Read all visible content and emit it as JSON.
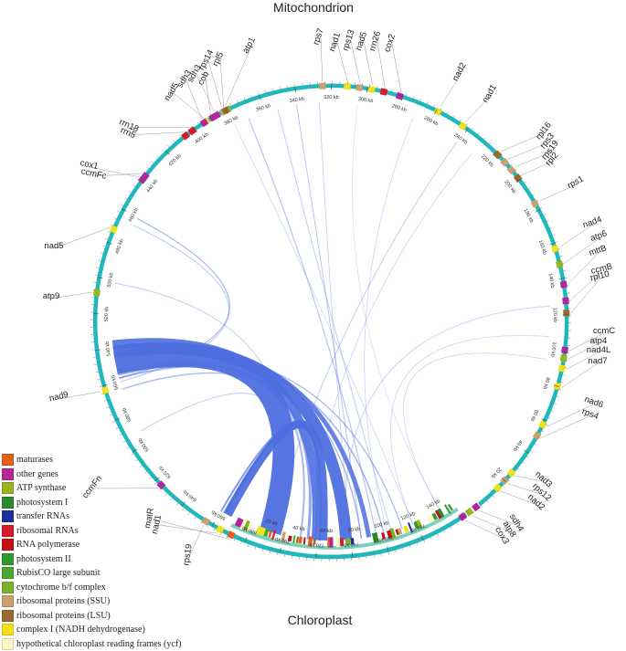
{
  "titles": {
    "mito": "Mitochondrion",
    "cp": "Chloroplast"
  },
  "colors": {
    "ring": "#20b8bc",
    "link": "#4f6fe0",
    "cp_track": "#7cd0c0"
  },
  "legend": [
    {
      "label": "maturases",
      "color": "#e0601c"
    },
    {
      "label": "other genes",
      "color": "#b0279c"
    },
    {
      "label": "ATP synthase",
      "color": "#9ab41e"
    },
    {
      "label": "photosystem I",
      "color": "#2a8a2a"
    },
    {
      "label": "transfer RNAs",
      "color": "#1f2f9a"
    },
    {
      "label": "ribosomal RNAs",
      "color": "#d81a2a"
    },
    {
      "label": "RNA polymerase",
      "color": "#c41212"
    },
    {
      "label": "photosystem II",
      "color": "#2e9a2e"
    },
    {
      "label": "RubisCO large subunit",
      "color": "#48a830"
    },
    {
      "label": "cytochrome b/f complex",
      "color": "#7ab12a"
    },
    {
      "label": "ribosomal proteins (SSU)",
      "color": "#caa070"
    },
    {
      "label": "ribosomal proteins (LSU)",
      "color": "#9a6a32"
    },
    {
      "label": "complex I (NADH dehydrogenase)",
      "color": "#f2e01a"
    },
    {
      "label": "hypothetical chloroplast reading frames (ycf)",
      "color": "#fff6c8"
    }
  ],
  "mito_ticks": [
    "20 kb",
    "40 kb",
    "60 kb",
    "80 kb",
    "100 kb",
    "120 kb",
    "140 kb",
    "160 kb",
    "180 kb",
    "200 kb",
    "220 kb",
    "240 kb",
    "260 kb",
    "280 kb",
    "300 kb",
    "320 kb",
    "340 kb",
    "360 kb",
    "380 kb",
    "400 kb",
    "420 kb",
    "440 kb",
    "460 kb",
    "480 kb",
    "500 kb",
    "520 kb",
    "540 kb",
    "560 kb",
    "580 kb",
    "600 kb",
    "620 kb",
    "640 kb",
    "660 kb",
    "680 kb",
    "700 kb",
    "720 kb",
    "740 kb",
    "760 kb",
    "780 kb"
  ],
  "cp_ticks": [
    "20 kb",
    "40 kb",
    "60 kb",
    "80 kb",
    "100 kb",
    "120 kb",
    "140 kb"
  ],
  "genes": [
    {
      "name": "atp1",
      "color": "#9ab41e"
    },
    {
      "name": "rps7",
      "color": "#caa070"
    },
    {
      "name": "nad1",
      "color": "#f2e01a"
    },
    {
      "name": "rps13",
      "color": "#caa070"
    },
    {
      "name": "nad5",
      "color": "#f2e01a"
    },
    {
      "name": "rrn26",
      "color": "#d81a2a"
    },
    {
      "name": "cox2",
      "color": "#b0279c"
    },
    {
      "name": "nad2",
      "color": "#f2e01a"
    },
    {
      "name": "nad1",
      "color": "#f2e01a"
    },
    {
      "name": "rpl16",
      "color": "#9a6a32"
    },
    {
      "name": "rps3",
      "color": "#caa070"
    },
    {
      "name": "rps19",
      "color": "#caa070"
    },
    {
      "name": "rpl2",
      "color": "#9a6a32"
    },
    {
      "name": "rps1",
      "color": "#caa070"
    },
    {
      "name": "nad4",
      "color": "#f2e01a"
    },
    {
      "name": "atp6",
      "color": "#9ab41e"
    },
    {
      "name": "mttB",
      "color": "#b0279c"
    },
    {
      "name": "ccmB",
      "color": "#b0279c"
    },
    {
      "name": "rpl10",
      "color": "#9a6a32"
    },
    {
      "name": "ccmC",
      "color": "#b0279c"
    },
    {
      "name": "atp4",
      "color": "#9ab41e"
    },
    {
      "name": "nad4L",
      "color": "#f2e01a"
    },
    {
      "name": "nad7",
      "color": "#f2e01a"
    },
    {
      "name": "nad6",
      "color": "#f2e01a"
    },
    {
      "name": "rps4",
      "color": "#caa070"
    },
    {
      "name": "nad3",
      "color": "#f2e01a"
    },
    {
      "name": "rps12",
      "color": "#caa070"
    },
    {
      "name": "nad2",
      "color": "#f2e01a"
    },
    {
      "name": "sdh4",
      "color": "#b0279c"
    },
    {
      "name": "atp8",
      "color": "#9ab41e"
    },
    {
      "name": "cox3",
      "color": "#b0279c"
    },
    {
      "name": "rps19",
      "color": "#caa070"
    },
    {
      "name": "nad1",
      "color": "#f2e01a"
    },
    {
      "name": "matR",
      "color": "#e0601c"
    },
    {
      "name": "ccmFn",
      "color": "#b0279c"
    },
    {
      "name": "nad9",
      "color": "#f2e01a"
    },
    {
      "name": "atp9",
      "color": "#9ab41e"
    },
    {
      "name": "nad5",
      "color": "#f2e01a"
    },
    {
      "name": "ccmFc",
      "color": "#b0279c"
    },
    {
      "name": "cox1",
      "color": "#b0279c"
    },
    {
      "name": "rrn5",
      "color": "#d81a2a"
    },
    {
      "name": "rrn18",
      "color": "#d81a2a"
    },
    {
      "name": "nad5",
      "color": "#f2e01a"
    },
    {
      "name": "sdh3",
      "color": "#b0279c"
    },
    {
      "name": "cob",
      "color": "#b0279c"
    },
    {
      "name": "sdh3",
      "color": "#b0279c"
    },
    {
      "name": "rps14",
      "color": "#caa070"
    },
    {
      "name": "rpl5",
      "color": "#9a6a32"
    }
  ]
}
